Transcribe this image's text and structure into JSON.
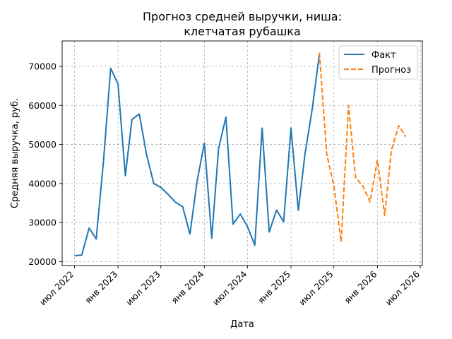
{
  "chart_data": {
    "type": "line",
    "title": [
      "Прогноз средней выручки, ниша:",
      "клетчатая рубашка"
    ],
    "xlabel": "Дата",
    "ylabel": "Средняя выручка, руб.",
    "x_ticks": [
      {
        "date": "2022-07-01",
        "label": "июл 2022"
      },
      {
        "date": "2023-01-01",
        "label": "янв 2023"
      },
      {
        "date": "2023-07-01",
        "label": "июл 2023"
      },
      {
        "date": "2024-01-01",
        "label": "янв 2024"
      },
      {
        "date": "2024-07-01",
        "label": "июл 2024"
      },
      {
        "date": "2025-01-01",
        "label": "янв 2025"
      },
      {
        "date": "2025-07-01",
        "label": "июл 2025"
      },
      {
        "date": "2026-01-01",
        "label": "янв 2026"
      },
      {
        "date": "2026-07-01",
        "label": "июл 2026"
      }
    ],
    "y_ticks": [
      20000,
      30000,
      40000,
      50000,
      60000,
      70000
    ],
    "xlim": [
      "2022-05-10",
      "2026-07-10"
    ],
    "ylim": [
      19000,
      76500
    ],
    "grid": true,
    "legend_position": "top-right",
    "series": [
      {
        "name": "Факт",
        "color": "#1f77b4",
        "style": "solid",
        "points": [
          {
            "x": "2022-07-01",
            "y": 21500
          },
          {
            "x": "2022-08-01",
            "y": 21700
          },
          {
            "x": "2022-09-01",
            "y": 28600
          },
          {
            "x": "2022-10-01",
            "y": 25800
          },
          {
            "x": "2022-11-01",
            "y": 46000
          },
          {
            "x": "2022-12-01",
            "y": 69500
          },
          {
            "x": "2023-01-01",
            "y": 65500
          },
          {
            "x": "2023-02-01",
            "y": 42000
          },
          {
            "x": "2023-03-01",
            "y": 56400
          },
          {
            "x": "2023-04-01",
            "y": 57800
          },
          {
            "x": "2023-05-01",
            "y": 47600
          },
          {
            "x": "2023-06-01",
            "y": 40000
          },
          {
            "x": "2023-07-01",
            "y": 39000
          },
          {
            "x": "2023-08-01",
            "y": 37200
          },
          {
            "x": "2023-09-01",
            "y": 35200
          },
          {
            "x": "2023-10-01",
            "y": 34100
          },
          {
            "x": "2023-11-01",
            "y": 27100
          },
          {
            "x": "2023-12-01",
            "y": 40500
          },
          {
            "x": "2024-01-01",
            "y": 50400
          },
          {
            "x": "2024-02-01",
            "y": 26000
          },
          {
            "x": "2024-03-01",
            "y": 49000
          },
          {
            "x": "2024-04-01",
            "y": 57000
          },
          {
            "x": "2024-05-01",
            "y": 29600
          },
          {
            "x": "2024-06-01",
            "y": 32200
          },
          {
            "x": "2024-07-01",
            "y": 29000
          },
          {
            "x": "2024-08-01",
            "y": 24200
          },
          {
            "x": "2024-09-01",
            "y": 54200
          },
          {
            "x": "2024-10-01",
            "y": 27600
          },
          {
            "x": "2024-11-01",
            "y": 33200
          },
          {
            "x": "2024-12-01",
            "y": 30200
          },
          {
            "x": "2025-01-01",
            "y": 54200
          },
          {
            "x": "2025-02-01",
            "y": 33100
          },
          {
            "x": "2025-03-01",
            "y": 47500
          },
          {
            "x": "2025-04-01",
            "y": 59200
          },
          {
            "x": "2025-05-01",
            "y": 73200
          }
        ]
      },
      {
        "name": "Прогноз",
        "color": "#ff7f0e",
        "style": "dashed",
        "points": [
          {
            "x": "2025-05-01",
            "y": 73500
          },
          {
            "x": "2025-06-01",
            "y": 47500
          },
          {
            "x": "2025-07-01",
            "y": 39500
          },
          {
            "x": "2025-08-01",
            "y": 25100
          },
          {
            "x": "2025-09-01",
            "y": 60000
          },
          {
            "x": "2025-10-01",
            "y": 41500
          },
          {
            "x": "2025-11-01",
            "y": 39300
          },
          {
            "x": "2025-12-01",
            "y": 35300
          },
          {
            "x": "2026-01-01",
            "y": 46000
          },
          {
            "x": "2026-02-01",
            "y": 31800
          },
          {
            "x": "2026-03-01",
            "y": 48500
          },
          {
            "x": "2026-04-01",
            "y": 54800
          },
          {
            "x": "2026-05-01",
            "y": 52000
          }
        ]
      }
    ]
  }
}
